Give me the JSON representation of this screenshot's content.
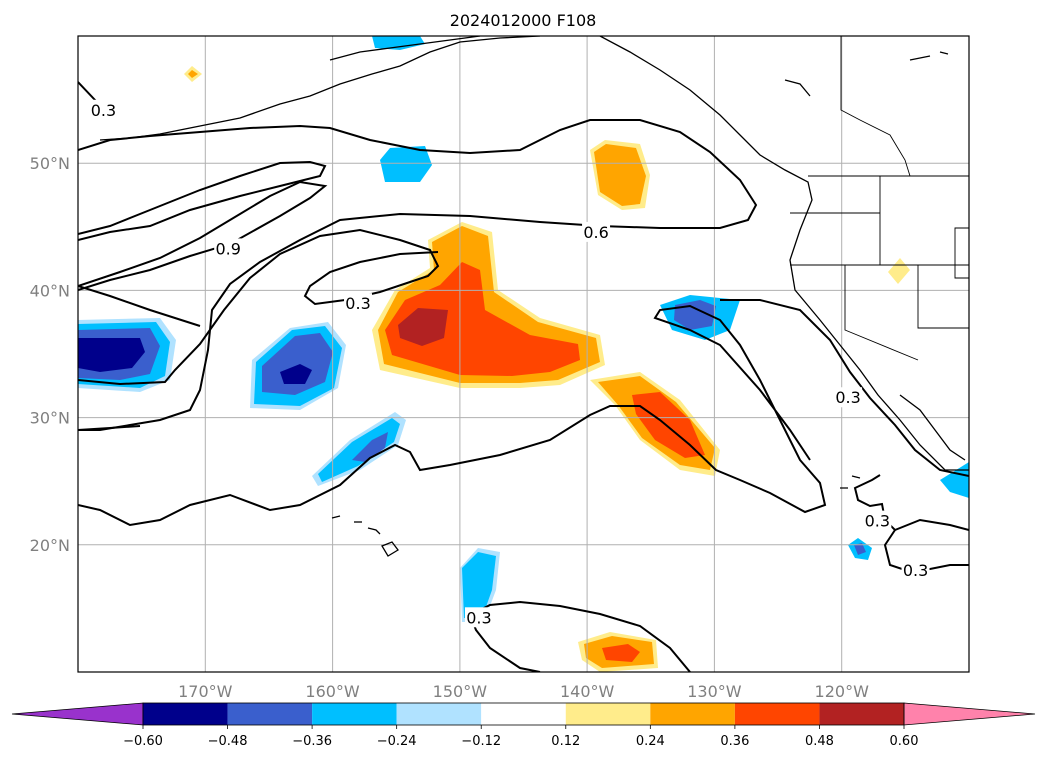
{
  "title": "2024012000 F108",
  "map": {
    "lon_range": [
      -180,
      -110
    ],
    "lat_range": [
      10,
      60
    ],
    "lat_labels": [
      {
        "lat": 50,
        "text": "50°N"
      },
      {
        "lat": 40,
        "text": "40°N"
      },
      {
        "lat": 30,
        "text": "30°N"
      },
      {
        "lat": 20,
        "text": "20°N"
      }
    ],
    "lon_labels": [
      {
        "lon": -170,
        "text": "170°W"
      },
      {
        "lon": -160,
        "text": "160°W"
      },
      {
        "lon": -150,
        "text": "150°W"
      },
      {
        "lon": -140,
        "text": "140°W"
      },
      {
        "lon": -130,
        "text": "130°W"
      },
      {
        "lon": -120,
        "text": "120°W"
      }
    ],
    "gridlines": true
  },
  "contour_labels": [
    {
      "text": "0.3",
      "lon": -178.0,
      "lat": 54.2
    },
    {
      "text": "0.9",
      "lon": -168.2,
      "lat": 43.3
    },
    {
      "text": "0.3",
      "lon": -158.0,
      "lat": 39.0
    },
    {
      "text": "0.6",
      "lon": -139.3,
      "lat": 44.6
    },
    {
      "text": "0.3",
      "lon": -119.5,
      "lat": 31.6
    },
    {
      "text": "0.3",
      "lon": -117.2,
      "lat": 21.9
    },
    {
      "text": "0.3",
      "lon": -114.2,
      "lat": 18.0
    },
    {
      "text": "0.3",
      "lon": -148.5,
      "lat": 14.3
    }
  ],
  "colorbar": {
    "ticks": [
      "−0.60",
      "−0.48",
      "−0.36",
      "−0.24",
      "−0.12",
      "0.12",
      "0.24",
      "0.36",
      "0.48",
      "0.60"
    ],
    "colors": [
      "#9932CC",
      "#00008B",
      "#3A5FCD",
      "#00BFFF",
      "#B0E2FF",
      "#FFFFFF",
      "#FFEC8B",
      "#FFA500",
      "#FF4500",
      "#B22222",
      "#FF82AB"
    ]
  }
}
